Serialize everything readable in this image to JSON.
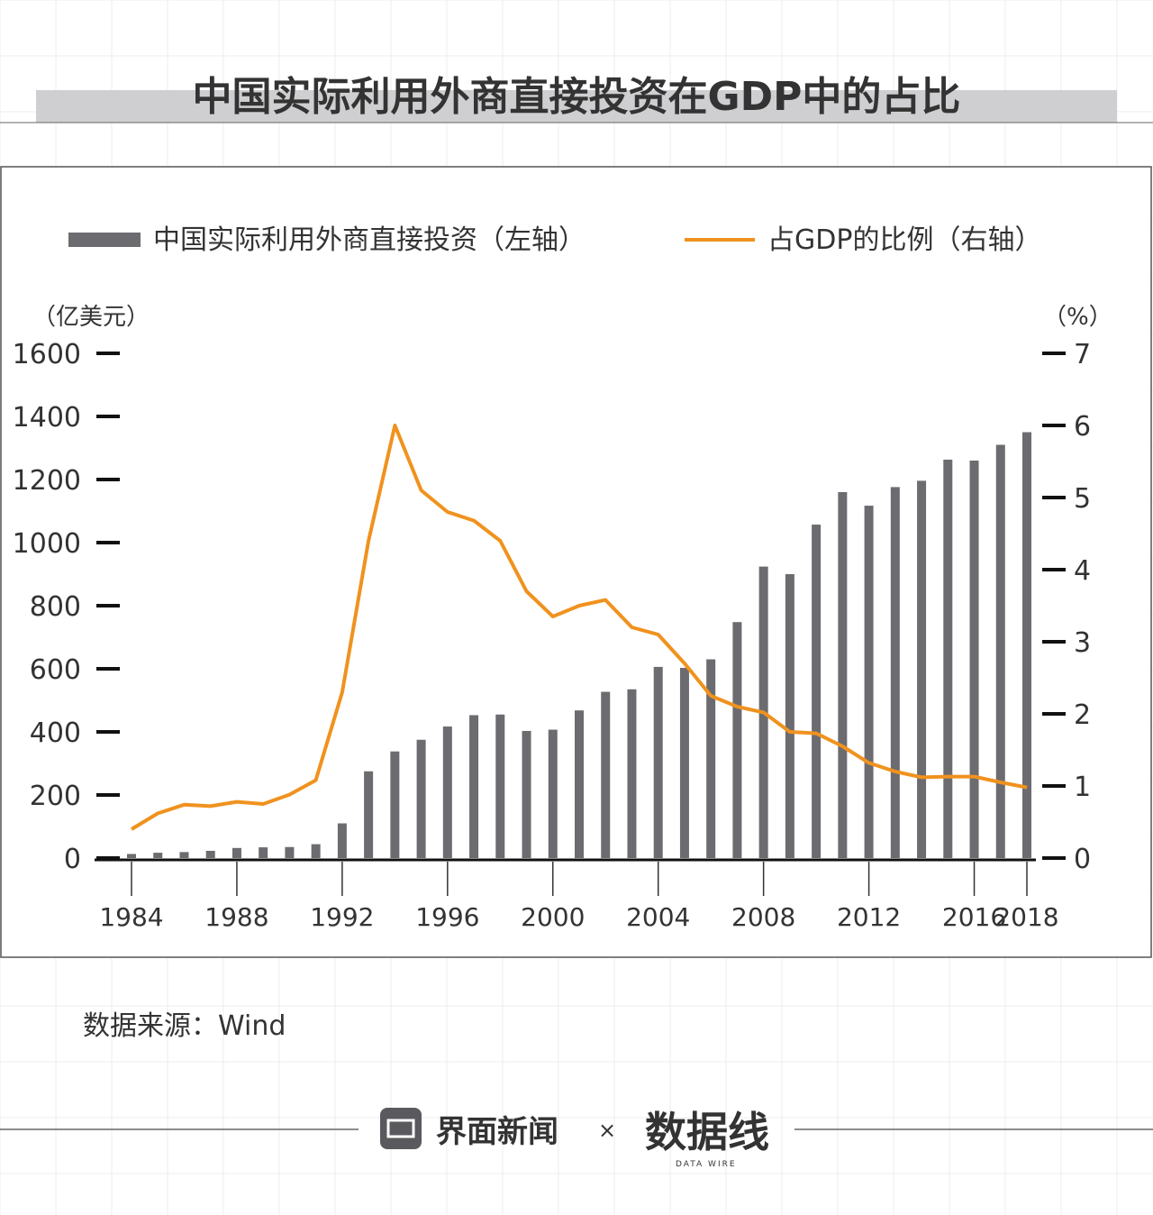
{
  "colors": {
    "bar": "#6b6b70",
    "line": "#f0921e",
    "grid": "#ececf0",
    "title_band": "#cfcfd2"
  },
  "header": {
    "title": "中国实际利用外商直接投资在GDP中的占比"
  },
  "footer": {
    "source": "数据来源：Wind",
    "brand_left": "界面新闻",
    "times": "×",
    "brand_right": "数据线",
    "brand_right_sub": "DATA WIRE"
  },
  "chart_data": {
    "type": "bar",
    "title": "中国实际利用外商直接投资在GDP中的占比",
    "legend": [
      "中国实际利用外商直接投资（左轴）",
      "占GDP的比例（右轴）"
    ],
    "legend_placement": "top",
    "ylabel": "（亿美元）",
    "y2label": "（%）",
    "ylim": [
      0,
      1600
    ],
    "y2lim": [
      0,
      7
    ],
    "yticks": [
      0,
      200,
      400,
      600,
      800,
      1000,
      1200,
      1400,
      1600
    ],
    "y2ticks": [
      0,
      1,
      2,
      3,
      4,
      5,
      6,
      7
    ],
    "xtick_labels": [
      "1984",
      "1988",
      "1992",
      "1996",
      "2000",
      "2004",
      "2008",
      "2012",
      "2016",
      "2018"
    ],
    "grid": false,
    "categories": [
      1984,
      1985,
      1986,
      1987,
      1988,
      1989,
      1990,
      1991,
      1992,
      1993,
      1994,
      1995,
      1996,
      1997,
      1998,
      1999,
      2000,
      2001,
      2002,
      2003,
      2004,
      2005,
      2006,
      2007,
      2008,
      2009,
      2010,
      2011,
      2012,
      2013,
      2014,
      2015,
      2016,
      2017,
      2018
    ],
    "series": [
      {
        "name": "中国实际利用外商直接投资（左轴）",
        "type": "bar",
        "axis": "left",
        "values": [
          13,
          17,
          19,
          23,
          32,
          34,
          35,
          44,
          110,
          275,
          338,
          375,
          417,
          453,
          455,
          403,
          407,
          468,
          527,
          535,
          606,
          603,
          630,
          748,
          924,
          900,
          1057,
          1160,
          1117,
          1176,
          1196,
          1263,
          1260,
          1310,
          1350
        ]
      },
      {
        "name": "占GDP的比例（右轴）",
        "type": "line",
        "axis": "right",
        "values": [
          0.4,
          0.62,
          0.74,
          0.72,
          0.78,
          0.75,
          0.88,
          1.08,
          2.3,
          4.4,
          6.0,
          5.1,
          4.8,
          4.68,
          4.4,
          3.7,
          3.35,
          3.5,
          3.58,
          3.2,
          3.1,
          2.7,
          2.25,
          2.1,
          2.02,
          1.75,
          1.73,
          1.55,
          1.32,
          1.2,
          1.12,
          1.13,
          1.13,
          1.05,
          0.98
        ]
      }
    ]
  }
}
